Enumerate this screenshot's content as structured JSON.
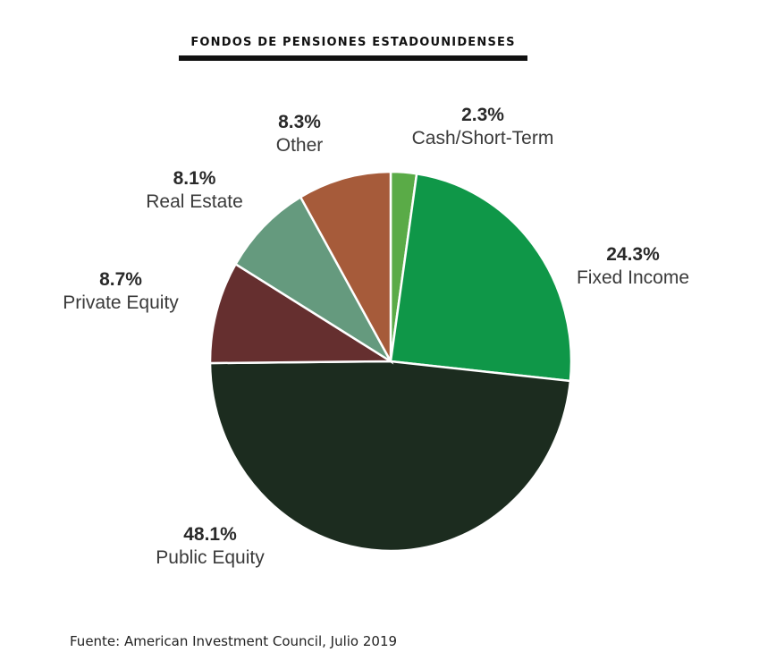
{
  "chart_data": {
    "type": "pie",
    "title": "FONDOS DE PENSIONES ESTADOUNIDENSES",
    "source": "Fuente: American Investment Council, Julio 2019",
    "slices": [
      {
        "label": "Cash/Short-Term",
        "value": 2.3,
        "value_label": "2.3%",
        "color": "#5aab47"
      },
      {
        "label": "Fixed Income",
        "value": 24.3,
        "value_label": "24.3%",
        "color": "#0f9748"
      },
      {
        "label": "Public Equity",
        "value": 48.1,
        "value_label": "48.1%",
        "color": "#1c2c1f"
      },
      {
        "label": "Private Equity",
        "value": 8.7,
        "value_label": "8.7%",
        "color": "#652f2f"
      },
      {
        "label": "Real Estate",
        "value": 8.1,
        "value_label": "8.1%",
        "color": "#659a7e"
      },
      {
        "label": "Other",
        "value": 8.3,
        "value_label": "8.3%",
        "color": "#a65b3a"
      }
    ]
  }
}
